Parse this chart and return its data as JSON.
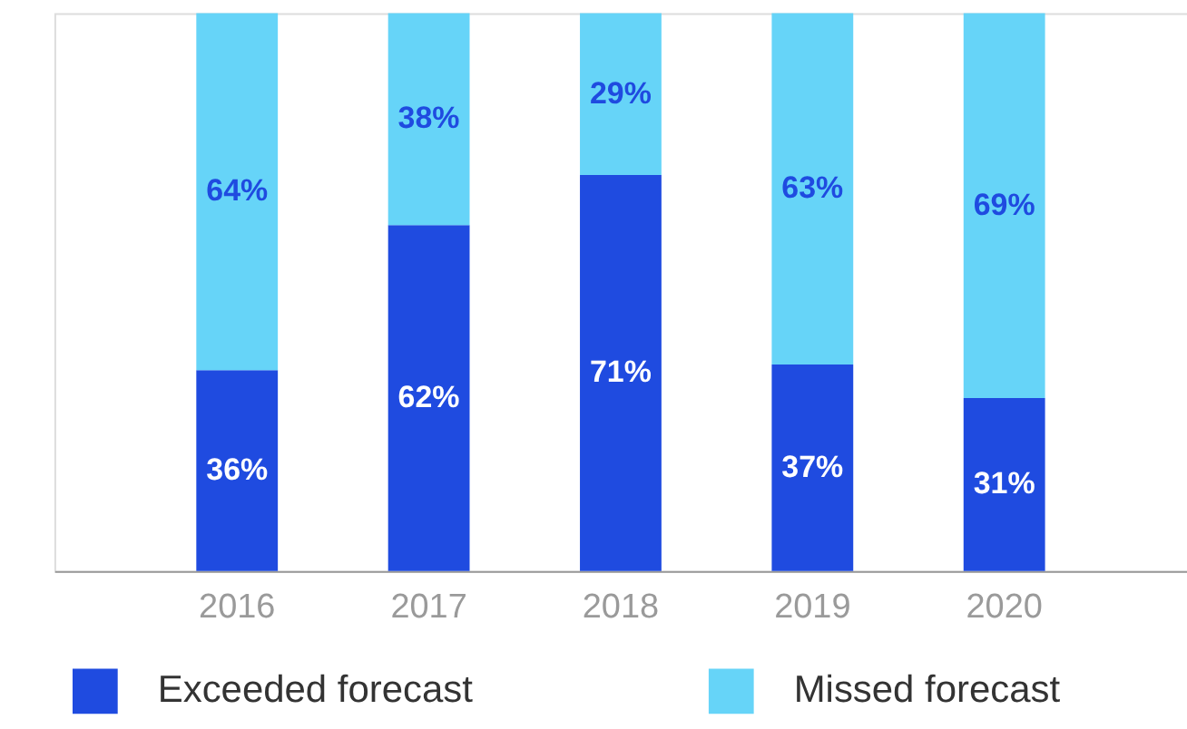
{
  "chart_data": {
    "type": "bar",
    "stacked": true,
    "legend": "bottom",
    "grid": false,
    "tick_labels": "x",
    "categories": [
      "2016",
      "2017",
      "2018",
      "2019",
      "2020"
    ],
    "series": [
      {
        "name": "Exceeded forecast",
        "color": "#1f4be0",
        "values": [
          36,
          62,
          71,
          37,
          31
        ],
        "value_labels": [
          "36%",
          "62%",
          "71%",
          "37%",
          "31%"
        ]
      },
      {
        "name": "Missed forecast",
        "color": "#66d4f8",
        "values": [
          64,
          38,
          29,
          63,
          69
        ],
        "value_labels": [
          "64%",
          "38%",
          "29%",
          "63%",
          "69%"
        ]
      }
    ]
  }
}
